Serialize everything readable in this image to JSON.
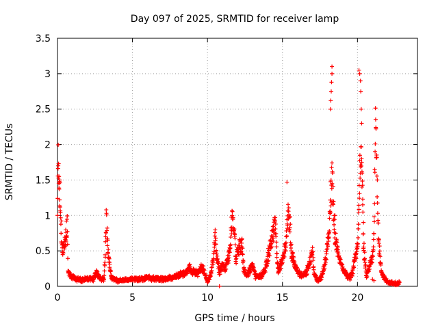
{
  "chart_data": {
    "type": "scatter",
    "title": "Day 097 of 2025, SRMTID for receiver lamp",
    "xlabel": "GPS time / hours",
    "ylabel": "SRMTID / TECUs",
    "xlim": [
      0,
      24
    ],
    "ylim": [
      0,
      3.5
    ],
    "grid": true,
    "marker": "plus",
    "color": "#ff0000",
    "x_ticks": [
      0,
      5,
      10,
      15,
      20
    ],
    "y_ticks": [
      0,
      0.5,
      1,
      1.5,
      2,
      2.5,
      3,
      3.5
    ],
    "x_tick_labels": [
      "0",
      "5",
      "10",
      "15",
      "20"
    ],
    "y_tick_labels": [
      "0",
      "0.5",
      "1",
      "1.5",
      "2",
      "2.5",
      "3",
      "3.5"
    ],
    "series": [
      {
        "name": "SRMTID",
        "profile": [
          [
            0.0,
            1.2
          ],
          [
            0.05,
            1.75
          ],
          [
            0.1,
            1.6
          ],
          [
            0.15,
            1.35
          ],
          [
            0.2,
            1.05
          ],
          [
            0.25,
            0.8
          ],
          [
            0.3,
            0.6
          ],
          [
            0.35,
            0.52
          ],
          [
            0.45,
            0.55
          ],
          [
            0.55,
            0.7
          ],
          [
            0.65,
            0.87
          ],
          [
            0.7,
            0.2
          ],
          [
            0.9,
            0.15
          ],
          [
            1.2,
            0.1
          ],
          [
            1.6,
            0.09
          ],
          [
            2.0,
            0.11
          ],
          [
            2.4,
            0.1
          ],
          [
            2.6,
            0.2
          ],
          [
            2.8,
            0.12
          ],
          [
            3.1,
            0.1
          ],
          [
            3.2,
            0.55
          ],
          [
            3.25,
            0.97
          ],
          [
            3.3,
            0.75
          ],
          [
            3.4,
            0.45
          ],
          [
            3.5,
            0.25
          ],
          [
            3.6,
            0.12
          ],
          [
            4.0,
            0.08
          ],
          [
            4.5,
            0.09
          ],
          [
            5.0,
            0.1
          ],
          [
            5.5,
            0.1
          ],
          [
            6.0,
            0.12
          ],
          [
            6.5,
            0.11
          ],
          [
            7.0,
            0.1
          ],
          [
            7.5,
            0.12
          ],
          [
            8.0,
            0.15
          ],
          [
            8.5,
            0.18
          ],
          [
            8.8,
            0.28
          ],
          [
            9.0,
            0.2
          ],
          [
            9.4,
            0.18
          ],
          [
            9.6,
            0.28
          ],
          [
            9.8,
            0.2
          ],
          [
            10.0,
            0.06
          ],
          [
            10.2,
            0.15
          ],
          [
            10.4,
            0.4
          ],
          [
            10.5,
            0.72
          ],
          [
            10.6,
            0.45
          ],
          [
            10.8,
            0.2
          ],
          [
            11.0,
            0.3
          ],
          [
            11.2,
            0.25
          ],
          [
            11.5,
            0.5
          ],
          [
            11.6,
            0.9
          ],
          [
            11.7,
            0.97
          ],
          [
            11.8,
            0.7
          ],
          [
            11.9,
            0.4
          ],
          [
            12.1,
            0.55
          ],
          [
            12.3,
            0.6
          ],
          [
            12.4,
            0.25
          ],
          [
            12.6,
            0.15
          ],
          [
            12.8,
            0.22
          ],
          [
            13.0,
            0.3
          ],
          [
            13.2,
            0.15
          ],
          [
            13.5,
            0.14
          ],
          [
            13.8,
            0.2
          ],
          [
            14.0,
            0.4
          ],
          [
            14.2,
            0.58
          ],
          [
            14.4,
            0.75
          ],
          [
            14.5,
            1.0
          ],
          [
            14.6,
            0.55
          ],
          [
            14.7,
            0.2
          ],
          [
            14.8,
            0.28
          ],
          [
            15.0,
            0.35
          ],
          [
            15.2,
            0.55
          ],
          [
            15.35,
            1.05
          ],
          [
            15.5,
            0.9
          ],
          [
            15.6,
            0.45
          ],
          [
            15.8,
            0.32
          ],
          [
            16.0,
            0.2
          ],
          [
            16.3,
            0.15
          ],
          [
            16.6,
            0.2
          ],
          [
            16.9,
            0.4
          ],
          [
            17.0,
            0.55
          ],
          [
            17.1,
            0.2
          ],
          [
            17.3,
            0.08
          ],
          [
            17.6,
            0.12
          ],
          [
            17.9,
            0.4
          ],
          [
            18.1,
            0.8
          ],
          [
            18.2,
            1.2
          ],
          [
            18.3,
            1.62
          ],
          [
            18.4,
            1.1
          ],
          [
            18.5,
            0.7
          ],
          [
            18.7,
            0.45
          ],
          [
            18.9,
            0.3
          ],
          [
            19.1,
            0.22
          ],
          [
            19.3,
            0.15
          ],
          [
            19.5,
            0.12
          ],
          [
            19.7,
            0.2
          ],
          [
            19.8,
            0.38
          ],
          [
            20.0,
            0.55
          ],
          [
            20.1,
            1.2
          ],
          [
            20.2,
            2.0
          ],
          [
            20.3,
            1.6
          ],
          [
            20.4,
            0.6
          ],
          [
            20.5,
            0.35
          ],
          [
            20.6,
            0.15
          ],
          [
            20.8,
            0.3
          ],
          [
            21.0,
            0.4
          ],
          [
            21.1,
            0.75
          ],
          [
            21.2,
            2.15
          ],
          [
            21.3,
            1.5
          ],
          [
            21.4,
            0.7
          ],
          [
            21.5,
            0.4
          ],
          [
            21.6,
            0.2
          ],
          [
            21.8,
            0.12
          ],
          [
            22.0,
            0.06
          ],
          [
            22.3,
            0.05
          ],
          [
            22.6,
            0.04
          ],
          [
            22.8,
            0.05
          ]
        ],
        "spikes": [
          [
            18.2,
            2.5
          ],
          [
            18.22,
            2.62
          ],
          [
            18.25,
            2.75
          ],
          [
            18.27,
            2.88
          ],
          [
            18.3,
            3.0
          ],
          [
            18.3,
            3.1
          ],
          [
            20.1,
            3.05
          ],
          [
            20.15,
            3.0
          ],
          [
            20.2,
            2.9
          ],
          [
            20.22,
            2.75
          ],
          [
            20.25,
            2.5
          ],
          [
            20.28,
            2.3
          ],
          [
            18.45,
            0.8
          ],
          [
            18.5,
            1.0
          ],
          [
            15.3,
            1.47
          ],
          [
            21.0,
            0.1
          ],
          [
            21.1,
            0.08
          ],
          [
            10.8,
            0.0
          ],
          [
            0.05,
            1.7
          ],
          [
            0.1,
            1.55
          ],
          [
            0.15,
            1.5
          ],
          [
            20.3,
            1.4
          ],
          [
            20.35,
            1.15
          ],
          [
            20.4,
            0.9
          ]
        ]
      }
    ]
  }
}
